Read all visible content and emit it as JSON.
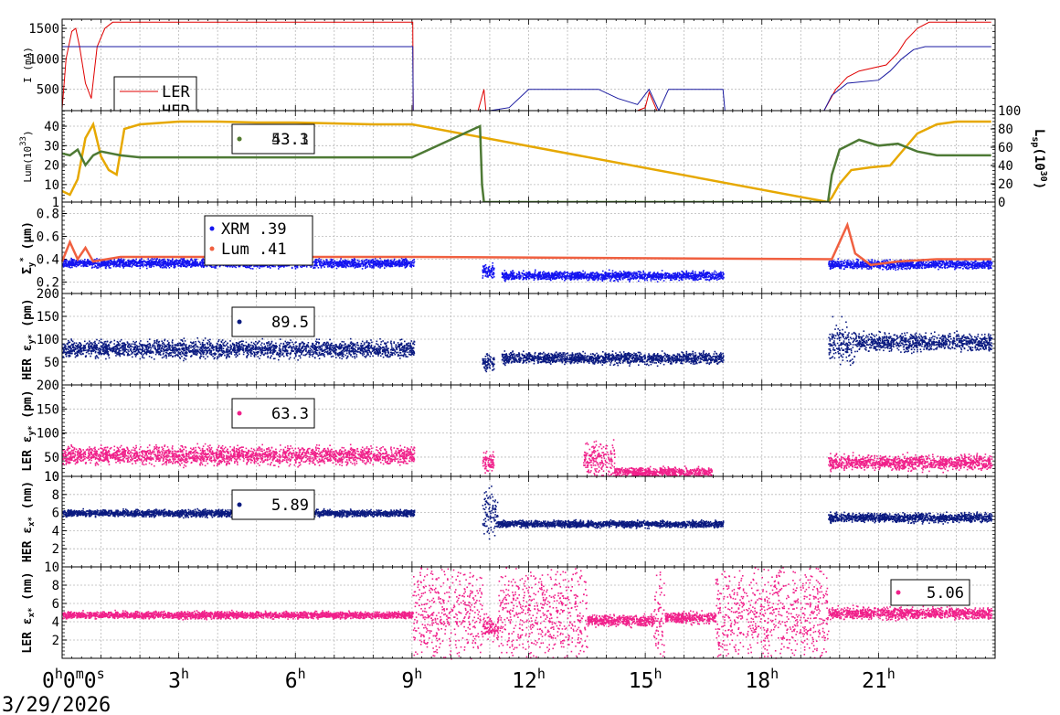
{
  "chart_data": {
    "type": "line",
    "x_axis": {
      "unit": "hour",
      "range": [
        0,
        24
      ],
      "tick_labels": [
        {
          "x": 0,
          "base": "0",
          "sup": "h",
          "tail": "0",
          "sup2": "m",
          "tail2": "0",
          "sup3": "s"
        },
        {
          "x": 3,
          "base": "3",
          "sup": "h"
        },
        {
          "x": 6,
          "base": "6",
          "sup": "h"
        },
        {
          "x": 9,
          "base": "9",
          "sup": "h"
        },
        {
          "x": 12,
          "base": "12",
          "sup": "h"
        },
        {
          "x": 15,
          "base": "15",
          "sup": "h"
        },
        {
          "x": 18,
          "base": "18",
          "sup": "h"
        },
        {
          "x": 21,
          "base": "21",
          "sup": "h"
        }
      ],
      "date": "3/29/2026"
    },
    "grid": true,
    "panels": [
      {
        "id": "current",
        "ylabel": "I (mA)",
        "ylim": [
          150,
          1650
        ],
        "yticks": [
          500,
          1000,
          1500
        ],
        "legend": {
          "placement": "left",
          "entries": [
            {
              "label": "LER",
              "color": "#e00000"
            },
            {
              "label": "HER",
              "color": "#1a1aa0"
            }
          ]
        },
        "series": [
          {
            "name": "LER",
            "color": "#e00000",
            "style": "line",
            "points": [
              [
                0,
                180
              ],
              [
                0.1,
                1000
              ],
              [
                0.25,
                1450
              ],
              [
                0.35,
                1500
              ],
              [
                0.45,
                1200
              ],
              [
                0.6,
                600
              ],
              [
                0.75,
                350
              ],
              [
                0.9,
                1200
              ],
              [
                1.1,
                1500
              ],
              [
                1.3,
                1600
              ],
              [
                2,
                1600
              ],
              [
                5,
                1600
              ],
              [
                9.02,
                1600
              ],
              [
                9.03,
                150
              ],
              [
                10.7,
                150
              ],
              [
                10.85,
                500
              ],
              [
                10.9,
                150
              ],
              [
                14.8,
                150
              ],
              [
                15.0,
                200
              ],
              [
                15.1,
                450
              ],
              [
                15.3,
                150
              ],
              [
                19.6,
                150
              ],
              [
                19.9,
                500
              ],
              [
                20.2,
                700
              ],
              [
                20.5,
                800
              ],
              [
                21.2,
                900
              ],
              [
                21.5,
                1100
              ],
              [
                21.7,
                1300
              ],
              [
                22.0,
                1500
              ],
              [
                22.3,
                1600
              ],
              [
                23.9,
                1600
              ]
            ]
          },
          {
            "name": "HER",
            "color": "#1a1aa0",
            "style": "line",
            "points": [
              [
                0,
                1200
              ],
              [
                9.02,
                1200
              ],
              [
                9.03,
                150
              ],
              [
                11,
                150
              ],
              [
                11.5,
                200
              ],
              [
                12.0,
                500
              ],
              [
                13.8,
                500
              ],
              [
                14.3,
                350
              ],
              [
                14.8,
                250
              ],
              [
                15.1,
                500
              ],
              [
                15.35,
                150
              ],
              [
                15.6,
                500
              ],
              [
                17.0,
                500
              ],
              [
                17.05,
                150
              ],
              [
                19.6,
                150
              ],
              [
                19.8,
                400
              ],
              [
                20.2,
                600
              ],
              [
                21.0,
                650
              ],
              [
                21.3,
                800
              ],
              [
                21.6,
                1000
              ],
              [
                21.9,
                1150
              ],
              [
                22.2,
                1200
              ],
              [
                23.9,
                1200
              ]
            ]
          }
        ]
      },
      {
        "id": "luminosity",
        "ylabel": "Lum(10",
        "ylabel_sup": "33",
        "ylabel_tail": ")",
        "ylim": [
          1,
          48
        ],
        "yticks": [
          1,
          10,
          20,
          30,
          40
        ],
        "y2label": "L",
        "y2label_sub": "sp",
        "y2label_mid": "(10",
        "y2label_sup": "30",
        "y2label_tail": ")",
        "y2lim": [
          0,
          100
        ],
        "y2ticks": [
          0,
          20,
          40,
          60,
          80,
          100
        ],
        "legend": {
          "placement": "left",
          "entries": [
            {
              "label": "53.1",
              "color": "#e6a800"
            },
            {
              "label": "43.3",
              "color": "#4e7a35"
            }
          ]
        },
        "series": [
          {
            "name": "Lsp",
            "color": "#e6a800",
            "style": "line",
            "axis": "y2",
            "points": [
              [
                0,
                12
              ],
              [
                0.2,
                8
              ],
              [
                0.4,
                25
              ],
              [
                0.6,
                70
              ],
              [
                0.8,
                85
              ],
              [
                1.0,
                50
              ],
              [
                1.2,
                35
              ],
              [
                1.4,
                30
              ],
              [
                1.6,
                80
              ],
              [
                2,
                85
              ],
              [
                3,
                88
              ],
              [
                4,
                88
              ],
              [
                5,
                87
              ],
              [
                6,
                87
              ],
              [
                7,
                86
              ],
              [
                8,
                85
              ],
              [
                9,
                85
              ],
              [
                19.7,
                0
              ],
              [
                19.8,
                5
              ],
              [
                20.0,
                20
              ],
              [
                20.3,
                35
              ],
              [
                20.8,
                38
              ],
              [
                21.3,
                40
              ],
              [
                21.5,
                50
              ],
              [
                22.0,
                75
              ],
              [
                22.5,
                85
              ],
              [
                23.0,
                88
              ],
              [
                23.9,
                88
              ]
            ]
          },
          {
            "name": "Lum",
            "color": "#4e7a35",
            "style": "line",
            "axis": "y1",
            "points": [
              [
                0,
                26
              ],
              [
                0.2,
                25
              ],
              [
                0.4,
                28
              ],
              [
                0.6,
                20
              ],
              [
                0.8,
                25
              ],
              [
                1.0,
                27
              ],
              [
                1.5,
                25
              ],
              [
                2,
                24
              ],
              [
                3,
                24
              ],
              [
                5,
                24
              ],
              [
                7,
                24
              ],
              [
                9,
                24
              ],
              [
                10.75,
                40
              ],
              [
                10.8,
                10
              ],
              [
                10.85,
                1
              ],
              [
                19.7,
                1
              ],
              [
                19.8,
                15
              ],
              [
                20.0,
                28
              ],
              [
                20.5,
                33
              ],
              [
                21.0,
                30
              ],
              [
                21.5,
                31
              ],
              [
                22.0,
                27
              ],
              [
                22.5,
                25
              ],
              [
                23.0,
                25
              ],
              [
                23.9,
                25
              ]
            ]
          }
        ]
      },
      {
        "id": "sigma",
        "ylabel": "Σ",
        "ylabel_sub": "y",
        "ylabel_sup": "*",
        "ylabel_tail": " (μm)",
        "ylim": [
          0.1,
          0.9
        ],
        "yticks": [
          0.2,
          0.4,
          0.6,
          0.8
        ],
        "legend": {
          "placement": "left",
          "entries": [
            {
              "label": "XRM  .39",
              "color": "#1515f0"
            },
            {
              "label": "Lum  .41",
              "color": "#f06040"
            }
          ]
        },
        "series": [
          {
            "name": "XRM",
            "color": "#1515f0",
            "style": "scatter",
            "segments": [
              [
                0,
                9.05,
                0.37,
                0.03
              ],
              [
                10.8,
                11.1,
                0.3,
                0.05
              ],
              [
                11.3,
                17.0,
                0.26,
                0.03
              ],
              [
                19.7,
                23.9,
                0.36,
                0.03
              ]
            ]
          },
          {
            "name": "Lum",
            "color": "#f06040",
            "style": "line",
            "points": [
              [
                0,
                0.38
              ],
              [
                0.2,
                0.55
              ],
              [
                0.4,
                0.4
              ],
              [
                0.6,
                0.5
              ],
              [
                0.8,
                0.38
              ],
              [
                1.5,
                0.42
              ],
              [
                4,
                0.42
              ],
              [
                7,
                0.42
              ],
              [
                9.05,
                0.42
              ],
              [
                19.8,
                0.4
              ],
              [
                20.0,
                0.55
              ],
              [
                20.2,
                0.7
              ],
              [
                20.4,
                0.45
              ],
              [
                20.8,
                0.35
              ],
              [
                21.5,
                0.38
              ],
              [
                22.5,
                0.4
              ],
              [
                23.9,
                0.4
              ]
            ]
          }
        ]
      },
      {
        "id": "her_ey",
        "ylabel": "HER ε",
        "ylabel_sub": "y*",
        "ylabel_tail": " (pm)",
        "ylim": [
          0,
          200
        ],
        "yticks": [
          50,
          100,
          150,
          200
        ],
        "legend": {
          "placement": "left",
          "entries": [
            {
              "label": "89.5",
              "color": "#0a1a80"
            }
          ]
        },
        "series": [
          {
            "name": "HER εy",
            "color": "#0a1a80",
            "style": "scatter",
            "segments": [
              [
                0,
                9.05,
                80,
                15
              ],
              [
                10.8,
                11.1,
                50,
                15
              ],
              [
                11.3,
                17.0,
                60,
                10
              ],
              [
                19.7,
                20.4,
                90,
                35
              ],
              [
                20.4,
                23.9,
                95,
                15
              ]
            ]
          }
        ]
      },
      {
        "id": "ler_ey",
        "ylabel": "LER ε",
        "ylabel_sub": "y*",
        "ylabel_tail": " (pm)",
        "ylim": [
          10,
          200
        ],
        "yticks": [
          10,
          50,
          100,
          150,
          200
        ],
        "legend": {
          "placement": "left",
          "entries": [
            {
              "label": "63.3",
              "color": "#f0208a"
            }
          ]
        },
        "series": [
          {
            "name": "LER εy",
            "color": "#f0208a",
            "style": "scatter",
            "segments": [
              [
                0,
                9.05,
                55,
                15
              ],
              [
                10.8,
                11.1,
                40,
                15
              ],
              [
                13.4,
                14.2,
                45,
                30
              ],
              [
                14.2,
                16.7,
                20,
                8
              ],
              [
                19.7,
                23.9,
                40,
                12
              ]
            ]
          }
        ]
      },
      {
        "id": "her_ex",
        "ylabel": "HER ε",
        "ylabel_sub": "x*",
        "ylabel_tail": " (nm)",
        "ylim": [
          0,
          10
        ],
        "yticks": [
          2,
          4,
          6,
          8,
          10
        ],
        "legend": {
          "placement": "left",
          "entries": [
            {
              "label": "5.89",
              "color": "#0a1a80"
            }
          ]
        },
        "series": [
          {
            "name": "HER εx",
            "color": "#0a1a80",
            "style": "scatter",
            "segments": [
              [
                0,
                9.05,
                6,
                0.3
              ],
              [
                10.8,
                11.2,
                6,
                2
              ],
              [
                11.2,
                17.0,
                4.8,
                0.3
              ],
              [
                19.7,
                23.9,
                5.5,
                0.4
              ]
            ]
          }
        ]
      },
      {
        "id": "ler_ex",
        "ylabel": "LER ε",
        "ylabel_sub": "x*",
        "ylabel_tail": " (nm)",
        "ylim": [
          0,
          10
        ],
        "yticks": [
          2,
          4,
          6,
          8,
          10
        ],
        "legend": {
          "placement": "right",
          "entries": [
            {
              "label": "5.06",
              "color": "#f0208a"
            }
          ]
        },
        "series": [
          {
            "name": "LER εx",
            "color": "#f0208a",
            "style": "scatter",
            "segments": [
              [
                0,
                9.0,
                4.8,
                0.3
              ],
              [
                9.0,
                10.8,
                5,
                4.5
              ],
              [
                10.8,
                11.2,
                3.5,
                1
              ],
              [
                11.2,
                13.5,
                5,
                4.5
              ],
              [
                13.5,
                15.2,
                4.2,
                0.5
              ],
              [
                15.2,
                15.5,
                5,
                4.5
              ],
              [
                15.5,
                16.8,
                4.5,
                0.5
              ],
              [
                16.8,
                19.7,
                5,
                4.5
              ],
              [
                19.7,
                23.9,
                5,
                0.5
              ]
            ]
          }
        ]
      }
    ]
  }
}
